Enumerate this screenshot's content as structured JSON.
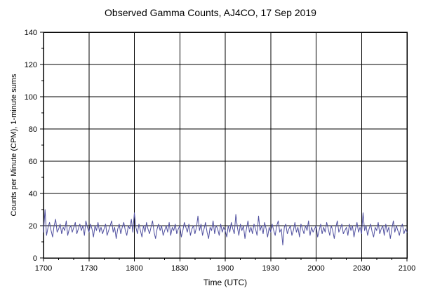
{
  "chart_data": {
    "type": "line",
    "title": "Observed Gamma Counts, AJ4CO, 17 Sep 2019",
    "xlabel": "Time (UTC)",
    "ylabel": "Counts per Minute (CPM), 1-minute sums",
    "x_tick_labels": [
      "1700",
      "1730",
      "1800",
      "1830",
      "1900",
      "1930",
      "2000",
      "2030",
      "2100"
    ],
    "x_tick_positions": [
      0,
      30,
      60,
      90,
      120,
      150,
      180,
      210,
      240
    ],
    "x_range_minutes": [
      0,
      240
    ],
    "x_minor_step": 10,
    "ylim": [
      0,
      140
    ],
    "y_ticks": [
      0,
      20,
      40,
      60,
      80,
      100,
      120,
      140
    ],
    "y_minor_step": 10,
    "grid": true,
    "line_color": "#4f4f9f",
    "frame_color": "#000000",
    "series": [
      {
        "name": "1-minute gamma counts",
        "x_start_minute": 0,
        "x_step": 1,
        "values": [
          16,
          30,
          14,
          19,
          22,
          17,
          13,
          20,
          24,
          16,
          18,
          21,
          15,
          19,
          17,
          23,
          14,
          18,
          20,
          16,
          19,
          22,
          15,
          18,
          21,
          17,
          20,
          14,
          23,
          19,
          16,
          21,
          18,
          13,
          20,
          17,
          22,
          16,
          19,
          15,
          18,
          21,
          14,
          17,
          20,
          23,
          16,
          19,
          12,
          18,
          21,
          15,
          19,
          22,
          17,
          14,
          20,
          18,
          24,
          16,
          28,
          19,
          15,
          21,
          17,
          13,
          20,
          16,
          22,
          18,
          15,
          19,
          23,
          16,
          12,
          18,
          21,
          17,
          20,
          14,
          17,
          20,
          16,
          22,
          14,
          19,
          17,
          21,
          15,
          18,
          20,
          13,
          17,
          22,
          19,
          16,
          21,
          14,
          18,
          20,
          15,
          19,
          26,
          17,
          21,
          14,
          18,
          22,
          16,
          12,
          19,
          17,
          23,
          15,
          20,
          18,
          14,
          21,
          16,
          19,
          17,
          13,
          20,
          16,
          22,
          18,
          15,
          27,
          19,
          14,
          21,
          17,
          20,
          12,
          18,
          23,
          16,
          19,
          15,
          21,
          18,
          14,
          26,
          17,
          20,
          15,
          22,
          18,
          13,
          19,
          16,
          21,
          17,
          14,
          20,
          23,
          16,
          18,
          8,
          19,
          21,
          15,
          18,
          20,
          14,
          17,
          22,
          16,
          19,
          13,
          21,
          18,
          15,
          20,
          17,
          23,
          14,
          19,
          16,
          18,
          20,
          13,
          17,
          21,
          15,
          19,
          16,
          22,
          18,
          14,
          20,
          17,
          12,
          19,
          23,
          16,
          18,
          21,
          15,
          17,
          19,
          14,
          21,
          17,
          20,
          13,
          18,
          22,
          16,
          19,
          15,
          28,
          17,
          20,
          14,
          18,
          21,
          16,
          13,
          19,
          17,
          22,
          15,
          18,
          20,
          14,
          21,
          16,
          19,
          12,
          18,
          23,
          16,
          20,
          17,
          14,
          19,
          21,
          15,
          18,
          16
        ]
      }
    ]
  }
}
